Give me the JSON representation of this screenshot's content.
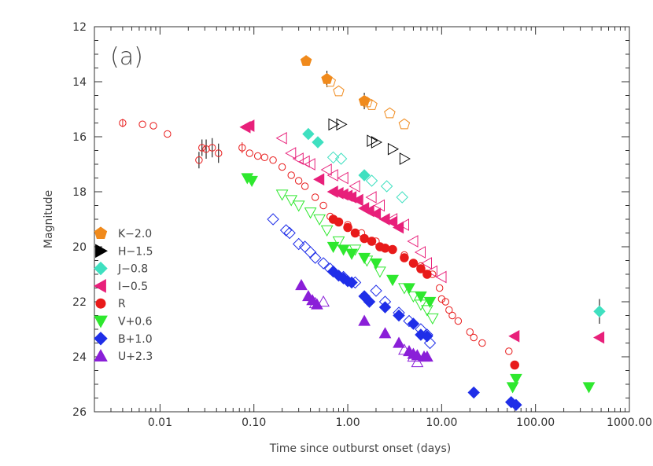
{
  "chart_data": {
    "type": "scatter",
    "panel_label": "(a)",
    "xlabel": "Time since outburst onset (days)",
    "ylabel": "Magnitude",
    "x_scale": "log",
    "xlim": [
      0.002,
      1000
    ],
    "ylim": [
      26,
      12
    ],
    "y_inverted": true,
    "grid": false,
    "legend_position": "left-middle",
    "x_ticks": [
      {
        "value": 0.01,
        "label": "0.01"
      },
      {
        "value": 0.1,
        "label": "0.10"
      },
      {
        "value": 1,
        "label": "1.00"
      },
      {
        "value": 10,
        "label": "10.00"
      },
      {
        "value": 100,
        "label": "100.00"
      },
      {
        "value": 1000,
        "label": "1000.00"
      }
    ],
    "y_ticks": [
      12,
      14,
      16,
      18,
      20,
      22,
      24,
      26
    ],
    "series": [
      {
        "name": "K−2.0",
        "color": "#f08a1c",
        "marker": "pentagon",
        "filled": [
          [
            0.36,
            13.25
          ],
          [
            0.6,
            13.9
          ],
          [
            1.5,
            14.7
          ]
        ],
        "open": [
          [
            0.65,
            14.0
          ],
          [
            0.8,
            14.35
          ],
          [
            1.6,
            14.75
          ],
          [
            1.8,
            14.85
          ],
          [
            2.8,
            15.15
          ],
          [
            4.0,
            15.55
          ]
        ]
      },
      {
        "name": "H−1.5",
        "color": "#000000",
        "marker": "triangle-right",
        "filled": [],
        "open": [
          [
            0.7,
            15.55
          ],
          [
            0.85,
            15.55
          ],
          [
            1.8,
            16.15
          ],
          [
            2.0,
            16.2
          ],
          [
            3.0,
            16.45
          ],
          [
            4.0,
            16.8
          ]
        ]
      },
      {
        "name": "J−0.8",
        "color": "#3fe0c0",
        "marker": "diamond",
        "filled": [
          [
            0.38,
            15.9
          ],
          [
            0.48,
            16.2
          ],
          [
            1.5,
            17.4
          ]
        ],
        "open": [
          [
            0.7,
            16.75
          ],
          [
            0.85,
            16.8
          ],
          [
            1.8,
            17.6
          ],
          [
            2.6,
            17.8
          ],
          [
            3.8,
            18.2
          ]
        ]
      },
      {
        "name": "I−0.5",
        "color": "#e8207a",
        "marker": "triangle-left",
        "filled": [
          [
            0.082,
            15.65
          ],
          [
            0.09,
            15.6
          ],
          [
            0.5,
            17.55
          ],
          [
            0.7,
            18.0
          ],
          [
            0.8,
            18.05
          ],
          [
            0.9,
            18.1
          ],
          [
            1.0,
            18.15
          ],
          [
            1.1,
            18.2
          ],
          [
            1.3,
            18.3
          ],
          [
            1.5,
            18.6
          ],
          [
            1.7,
            18.7
          ],
          [
            2.0,
            18.8
          ],
          [
            2.5,
            19.0
          ],
          [
            3.0,
            19.1
          ],
          [
            3.5,
            19.3
          ],
          [
            60,
            23.25
          ],
          [
            480,
            23.3
          ]
        ],
        "open": [
          [
            0.2,
            16.05
          ],
          [
            0.25,
            16.6
          ],
          [
            0.3,
            16.8
          ],
          [
            0.35,
            16.9
          ],
          [
            0.4,
            17.0
          ],
          [
            0.6,
            17.2
          ],
          [
            0.7,
            17.4
          ],
          [
            0.9,
            17.5
          ],
          [
            1.2,
            17.8
          ],
          [
            1.8,
            18.2
          ],
          [
            2.2,
            18.5
          ],
          [
            3.0,
            19.0
          ],
          [
            4.0,
            19.2
          ],
          [
            5.0,
            19.8
          ],
          [
            6.0,
            20.2
          ],
          [
            7.0,
            20.6
          ],
          [
            8.0,
            20.9
          ],
          [
            10.0,
            21.1
          ]
        ]
      },
      {
        "name": "R",
        "color": "#e81a1a",
        "marker": "circle",
        "filled": [
          [
            0.7,
            19.0
          ],
          [
            0.8,
            19.1
          ],
          [
            1.0,
            19.3
          ],
          [
            1.2,
            19.5
          ],
          [
            1.5,
            19.7
          ],
          [
            1.8,
            19.8
          ],
          [
            2.2,
            20.0
          ],
          [
            2.5,
            20.05
          ],
          [
            3.0,
            20.1
          ],
          [
            4.0,
            20.4
          ],
          [
            5.0,
            20.6
          ],
          [
            6.0,
            20.8
          ],
          [
            7.0,
            21.0
          ],
          [
            60,
            24.3
          ]
        ],
        "open": [
          [
            0.004,
            15.5
          ],
          [
            0.0065,
            15.55
          ],
          [
            0.0085,
            15.6
          ],
          [
            0.012,
            15.9
          ],
          [
            0.026,
            16.85
          ],
          [
            0.028,
            16.4
          ],
          [
            0.031,
            16.45
          ],
          [
            0.036,
            16.4
          ],
          [
            0.042,
            16.6
          ],
          [
            0.075,
            16.4
          ],
          [
            0.09,
            16.6
          ],
          [
            0.11,
            16.7
          ],
          [
            0.13,
            16.75
          ],
          [
            0.16,
            16.85
          ],
          [
            0.2,
            17.1
          ],
          [
            0.25,
            17.4
          ],
          [
            0.3,
            17.6
          ],
          [
            0.35,
            17.8
          ],
          [
            0.45,
            18.2
          ],
          [
            0.55,
            18.5
          ],
          [
            0.65,
            18.9
          ],
          [
            1.0,
            19.2
          ],
          [
            1.4,
            19.5
          ],
          [
            2.0,
            19.8
          ],
          [
            3.0,
            20.1
          ],
          [
            4.0,
            20.3
          ],
          [
            6.0,
            20.7
          ],
          [
            8.0,
            21.0
          ],
          [
            9.5,
            21.5
          ],
          [
            10.0,
            21.9
          ],
          [
            11.0,
            22.0
          ],
          [
            12.0,
            22.3
          ],
          [
            13.0,
            22.5
          ],
          [
            15.0,
            22.7
          ],
          [
            20.0,
            23.1
          ],
          [
            22.0,
            23.3
          ],
          [
            27.0,
            23.5
          ],
          [
            52.0,
            23.8
          ]
        ]
      },
      {
        "name": "V+0.6",
        "color": "#2ee82e",
        "marker": "triangle-down",
        "filled": [
          [
            0.085,
            17.5
          ],
          [
            0.095,
            17.6
          ],
          [
            0.7,
            20.0
          ],
          [
            0.9,
            20.1
          ],
          [
            1.1,
            20.25
          ],
          [
            1.5,
            20.4
          ],
          [
            2.0,
            20.6
          ],
          [
            3.0,
            21.2
          ],
          [
            4.5,
            21.5
          ],
          [
            6.0,
            21.8
          ],
          [
            7.5,
            22.0
          ],
          [
            57,
            25.1
          ],
          [
            62,
            24.8
          ],
          [
            370,
            25.1
          ]
        ],
        "open": [
          [
            0.2,
            18.1
          ],
          [
            0.25,
            18.3
          ],
          [
            0.3,
            18.5
          ],
          [
            0.4,
            18.75
          ],
          [
            0.5,
            19.0
          ],
          [
            0.6,
            19.4
          ],
          [
            0.8,
            19.8
          ],
          [
            1.2,
            20.1
          ],
          [
            1.6,
            20.5
          ],
          [
            2.2,
            20.9
          ],
          [
            3.0,
            21.2
          ],
          [
            4.0,
            21.5
          ],
          [
            5.0,
            21.8
          ],
          [
            6.0,
            22.1
          ],
          [
            7.0,
            22.3
          ],
          [
            8.0,
            22.6
          ]
        ]
      },
      {
        "name": "B+1.0",
        "color": "#1f2ee8",
        "marker": "diamond",
        "filled": [
          [
            0.7,
            20.9
          ],
          [
            0.8,
            21.05
          ],
          [
            0.9,
            21.15
          ],
          [
            1.0,
            21.25
          ],
          [
            1.1,
            21.3
          ],
          [
            1.5,
            21.8
          ],
          [
            1.7,
            22.0
          ],
          [
            2.5,
            22.2
          ],
          [
            3.5,
            22.5
          ],
          [
            5.0,
            22.8
          ],
          [
            6.0,
            23.2
          ],
          [
            7.0,
            23.25
          ],
          [
            22.0,
            25.3
          ],
          [
            55,
            25.65
          ],
          [
            62,
            25.75
          ]
        ],
        "open": [
          [
            0.16,
            19.0
          ],
          [
            0.22,
            19.4
          ],
          [
            0.24,
            19.5
          ],
          [
            0.3,
            19.9
          ],
          [
            0.35,
            20.0
          ],
          [
            0.4,
            20.2
          ],
          [
            0.45,
            20.4
          ],
          [
            0.55,
            20.6
          ],
          [
            0.65,
            20.8
          ],
          [
            0.9,
            21.1
          ],
          [
            1.2,
            21.3
          ],
          [
            2.0,
            21.6
          ],
          [
            2.5,
            22.0
          ],
          [
            3.5,
            22.4
          ],
          [
            4.5,
            22.7
          ],
          [
            6.0,
            23.0
          ],
          [
            7.0,
            23.2
          ],
          [
            7.5,
            23.5
          ]
        ]
      },
      {
        "name": "U+2.3",
        "color": "#8a1fd8",
        "marker": "triangle-up",
        "filled": [
          [
            0.32,
            21.4
          ],
          [
            0.38,
            21.8
          ],
          [
            0.42,
            21.95
          ],
          [
            0.47,
            22.1
          ],
          [
            1.5,
            22.7
          ],
          [
            2.5,
            23.15
          ],
          [
            3.5,
            23.5
          ],
          [
            4.5,
            23.8
          ],
          [
            5.0,
            23.9
          ],
          [
            5.5,
            23.95
          ],
          [
            6.5,
            24.0
          ],
          [
            7.0,
            24.0
          ]
        ],
        "open": [
          [
            0.45,
            22.05
          ],
          [
            0.55,
            22.0
          ],
          [
            4.0,
            23.75
          ],
          [
            5.0,
            24.0
          ],
          [
            5.5,
            24.2
          ]
        ]
      }
    ],
    "error_bars": [
      {
        "x": 0.004,
        "y": 15.5,
        "err": 0.15,
        "color": "#e81a1a"
      },
      {
        "x": 0.026,
        "y": 16.85,
        "err": 0.3,
        "color": "#000000"
      },
      {
        "x": 0.028,
        "y": 16.4,
        "err": 0.3,
        "color": "#000000"
      },
      {
        "x": 0.031,
        "y": 16.45,
        "err": 0.35,
        "color": "#000000"
      },
      {
        "x": 0.036,
        "y": 16.4,
        "err": 0.35,
        "color": "#000000"
      },
      {
        "x": 0.042,
        "y": 16.6,
        "err": 0.35,
        "color": "#000000"
      },
      {
        "x": 0.075,
        "y": 16.4,
        "err": 0.2,
        "color": "#e81a1a"
      },
      {
        "x": 0.6,
        "y": 13.9,
        "err": 0.3,
        "color": "#000000"
      },
      {
        "x": 1.5,
        "y": 14.7,
        "err": 0.3,
        "color": "#000000"
      },
      {
        "x": 480,
        "y": 22.35,
        "err": 0.45,
        "color": "#000000"
      }
    ],
    "extra_points": [
      {
        "x": 480,
        "y": 22.35,
        "color": "#3fe0c0",
        "marker": "diamond",
        "filled": true
      }
    ]
  }
}
